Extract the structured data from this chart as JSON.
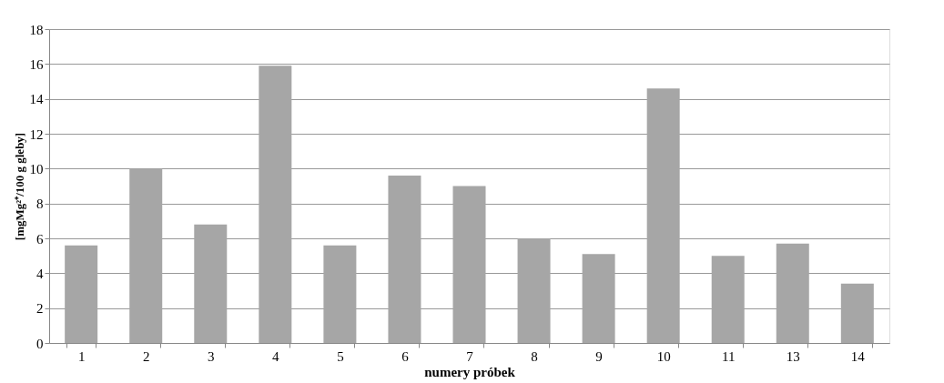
{
  "chart_data": {
    "type": "bar",
    "xlabel": "numery próbek",
    "ylabel": "[mgMg²⁺/100 g gleby]",
    "categories": [
      "1",
      "2",
      "3",
      "4",
      "5",
      "6",
      "7",
      "8",
      "9",
      "10",
      "11",
      "13",
      "14"
    ],
    "values": [
      5.6,
      10.0,
      6.8,
      15.9,
      5.6,
      9.6,
      9.0,
      6.0,
      5.1,
      14.6,
      5.0,
      5.7,
      3.4
    ],
    "color": "#a6a6a6",
    "ylim": [
      0,
      18
    ],
    "yticks": [
      0,
      2,
      4,
      6,
      8,
      10,
      12,
      14,
      16,
      18
    ],
    "grid": "y"
  }
}
